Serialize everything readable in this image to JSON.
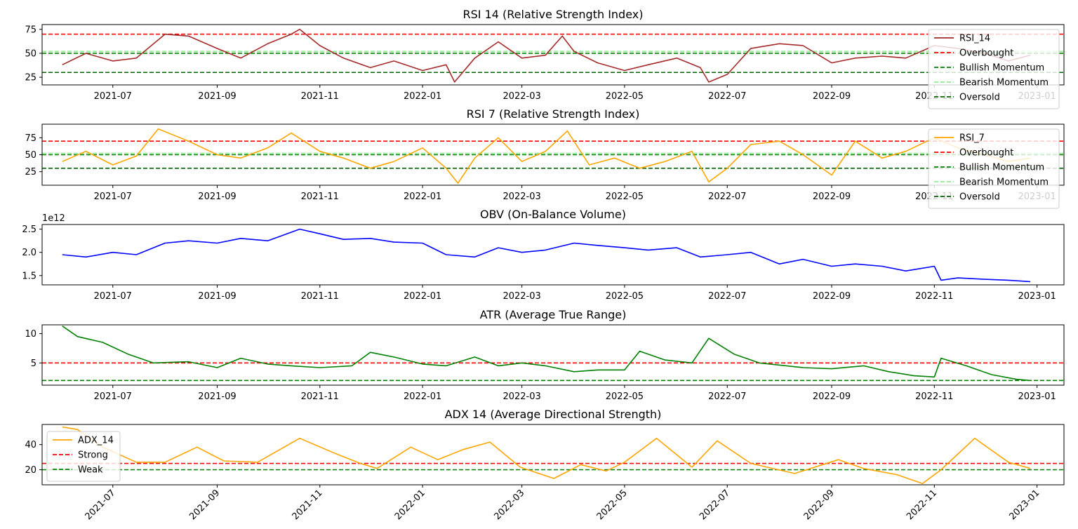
{
  "chart_data": [
    {
      "type": "line",
      "title": "RSI 14 (Relative Strength Index)",
      "xlim": [
        "2021-05-20",
        "2023-01-17"
      ],
      "ylim": [
        17,
        80
      ],
      "yticks": [
        "25",
        "50",
        "75"
      ],
      "xticks": [
        "2021-07",
        "2021-09",
        "2021-11",
        "2022-01",
        "2022-03",
        "2022-05",
        "2022-07",
        "2022-09",
        "2022-11",
        "2023-01"
      ],
      "legend": "upper-right",
      "series": [
        {
          "name": "RSI_14",
          "color": "#a52a2a",
          "dates": [
            "2021-06-01",
            "2021-06-15",
            "2021-07-01",
            "2021-07-15",
            "2021-08-01",
            "2021-08-15",
            "2021-09-01",
            "2021-09-15",
            "2021-10-01",
            "2021-10-15",
            "2021-10-20",
            "2021-11-01",
            "2021-11-15",
            "2021-12-01",
            "2021-12-15",
            "2022-01-01",
            "2022-01-15",
            "2022-01-20",
            "2022-02-01",
            "2022-02-15",
            "2022-03-01",
            "2022-03-15",
            "2022-03-25",
            "2022-04-01",
            "2022-04-15",
            "2022-05-01",
            "2022-05-15",
            "2022-06-01",
            "2022-06-15",
            "2022-06-20",
            "2022-07-01",
            "2022-07-15",
            "2022-08-01",
            "2022-08-15",
            "2022-09-01",
            "2022-09-15",
            "2022-10-01",
            "2022-10-15",
            "2022-11-01",
            "2022-11-15",
            "2022-12-01",
            "2022-12-15",
            "2022-12-28"
          ],
          "values": [
            38,
            50,
            42,
            45,
            70,
            68,
            55,
            45,
            60,
            70,
            75,
            58,
            45,
            35,
            42,
            32,
            38,
            20,
            45,
            62,
            45,
            48,
            68,
            52,
            40,
            32,
            38,
            45,
            35,
            20,
            28,
            55,
            60,
            58,
            40,
            45,
            47,
            45,
            58,
            55,
            50,
            42,
            48
          ]
        }
      ],
      "hlines": [
        {
          "name": "Overbought",
          "value": 70,
          "color": "#ff0000"
        },
        {
          "name": "Bullish Momentum",
          "value": 50,
          "color": "#008000"
        },
        {
          "name": "Bearish Momentum",
          "value": 52,
          "color": "#90ee90"
        },
        {
          "name": "Oversold",
          "value": 30,
          "color": "#006400"
        }
      ]
    },
    {
      "type": "line",
      "title": "RSI 7 (Relative Strength Index)",
      "xlim": [
        "2021-05-20",
        "2023-01-17"
      ],
      "ylim": [
        5,
        95
      ],
      "yticks": [
        "25",
        "50",
        "75"
      ],
      "xticks": [
        "2021-07",
        "2021-09",
        "2021-11",
        "2022-01",
        "2022-03",
        "2022-05",
        "2022-07",
        "2022-09",
        "2022-11",
        "2023-01"
      ],
      "legend": "upper-right",
      "series": [
        {
          "name": "RSI_7",
          "color": "#ffa500",
          "dates": [
            "2021-06-01",
            "2021-06-15",
            "2021-07-01",
            "2021-07-15",
            "2021-07-28",
            "2021-08-15",
            "2021-09-01",
            "2021-09-15",
            "2021-10-01",
            "2021-10-15",
            "2021-11-01",
            "2021-11-15",
            "2021-12-01",
            "2021-12-15",
            "2022-01-01",
            "2022-01-15",
            "2022-01-22",
            "2022-02-01",
            "2022-02-15",
            "2022-03-01",
            "2022-03-15",
            "2022-03-28",
            "2022-04-10",
            "2022-04-25",
            "2022-05-10",
            "2022-05-25",
            "2022-06-10",
            "2022-06-20",
            "2022-07-01",
            "2022-07-15",
            "2022-08-01",
            "2022-08-15",
            "2022-09-01",
            "2022-09-15",
            "2022-10-01",
            "2022-10-15",
            "2022-11-01",
            "2022-11-15",
            "2022-12-01",
            "2022-12-15",
            "2022-12-28"
          ],
          "values": [
            40,
            55,
            35,
            48,
            88,
            70,
            50,
            45,
            60,
            82,
            55,
            45,
            30,
            40,
            60,
            30,
            8,
            45,
            75,
            40,
            55,
            85,
            35,
            45,
            30,
            40,
            55,
            10,
            30,
            65,
            70,
            50,
            20,
            70,
            45,
            55,
            75,
            60,
            50,
            40,
            45
          ]
        }
      ],
      "hlines": [
        {
          "name": "Overbought",
          "value": 70,
          "color": "#ff0000"
        },
        {
          "name": "Bullish Momentum",
          "value": 50,
          "color": "#008000"
        },
        {
          "name": "Bearish Momentum",
          "value": 52,
          "color": "#90ee90"
        },
        {
          "name": "Oversold",
          "value": 30,
          "color": "#006400"
        }
      ]
    },
    {
      "type": "line",
      "title": "OBV (On-Balance Volume)",
      "offset_label": "1e12",
      "xlim": [
        "2021-05-20",
        "2023-01-17"
      ],
      "ylim": [
        1.3,
        2.6
      ],
      "yticks": [
        "1.5",
        "2.0",
        "2.5"
      ],
      "xticks": [
        "2021-07",
        "2021-09",
        "2021-11",
        "2022-01",
        "2022-03",
        "2022-05",
        "2022-07",
        "2022-09",
        "2022-11",
        "2023-01"
      ],
      "series": [
        {
          "name": "OBV",
          "color": "#0000ff",
          "dates": [
            "2021-06-01",
            "2021-06-15",
            "2021-07-01",
            "2021-07-15",
            "2021-08-01",
            "2021-08-15",
            "2021-09-01",
            "2021-09-15",
            "2021-10-01",
            "2021-10-20",
            "2021-11-01",
            "2021-11-15",
            "2021-12-01",
            "2021-12-15",
            "2022-01-01",
            "2022-01-15",
            "2022-02-01",
            "2022-02-15",
            "2022-03-01",
            "2022-03-15",
            "2022-04-01",
            "2022-04-15",
            "2022-05-01",
            "2022-05-15",
            "2022-06-01",
            "2022-06-15",
            "2022-07-01",
            "2022-07-15",
            "2022-08-01",
            "2022-08-15",
            "2022-09-01",
            "2022-09-15",
            "2022-10-01",
            "2022-10-15",
            "2022-11-01",
            "2022-11-05",
            "2022-11-15",
            "2022-12-01",
            "2022-12-15",
            "2022-12-28"
          ],
          "values": [
            1.95,
            1.9,
            2.0,
            1.95,
            2.2,
            2.25,
            2.2,
            2.3,
            2.25,
            2.5,
            2.4,
            2.28,
            2.3,
            2.22,
            2.2,
            1.95,
            1.9,
            2.1,
            2.0,
            2.05,
            2.2,
            2.15,
            2.1,
            2.05,
            2.1,
            1.9,
            1.95,
            2.0,
            1.75,
            1.85,
            1.7,
            1.75,
            1.7,
            1.6,
            1.7,
            1.4,
            1.45,
            1.42,
            1.4,
            1.37
          ]
        }
      ]
    },
    {
      "type": "line",
      "title": "ATR (Average True Range)",
      "xlim": [
        "2021-05-20",
        "2023-01-17"
      ],
      "ylim": [
        1.2,
        11.5
      ],
      "yticks": [
        "5",
        "10"
      ],
      "xticks": [
        "2021-07",
        "2021-09",
        "2021-11",
        "2022-01",
        "2022-03",
        "2022-05",
        "2022-07",
        "2022-09",
        "2022-11",
        "2023-01"
      ],
      "series": [
        {
          "name": "ATR",
          "color": "#008000",
          "dates": [
            "2021-06-01",
            "2021-06-10",
            "2021-06-25",
            "2021-07-10",
            "2021-07-25",
            "2021-08-15",
            "2021-09-01",
            "2021-09-15",
            "2021-10-01",
            "2021-10-15",
            "2021-11-01",
            "2021-11-20",
            "2021-12-01",
            "2021-12-15",
            "2022-01-01",
            "2022-01-15",
            "2022-02-01",
            "2022-02-15",
            "2022-03-01",
            "2022-03-15",
            "2022-04-01",
            "2022-04-15",
            "2022-05-01",
            "2022-05-10",
            "2022-05-25",
            "2022-06-10",
            "2022-06-20",
            "2022-07-05",
            "2022-07-20",
            "2022-08-15",
            "2022-09-01",
            "2022-09-20",
            "2022-10-05",
            "2022-10-20",
            "2022-11-01",
            "2022-11-05",
            "2022-11-20",
            "2022-12-05",
            "2022-12-20",
            "2022-12-28"
          ],
          "values": [
            11.3,
            9.5,
            8.5,
            6.5,
            5.0,
            5.2,
            4.2,
            5.8,
            4.8,
            4.5,
            4.2,
            4.5,
            6.8,
            6.0,
            4.8,
            4.5,
            6.0,
            4.5,
            5.0,
            4.5,
            3.5,
            3.8,
            3.8,
            7.0,
            5.5,
            5.0,
            9.2,
            6.5,
            5.0,
            4.2,
            4.0,
            4.5,
            3.5,
            2.8,
            2.6,
            5.8,
            4.5,
            3.0,
            2.2,
            2.0
          ]
        }
      ],
      "hlines": [
        {
          "value": 5,
          "color": "#ff0000"
        },
        {
          "value": 2,
          "color": "#008000"
        }
      ]
    },
    {
      "type": "line",
      "title": "ADX 14 (Average Directional Strength)",
      "xlim": [
        "2021-05-20",
        "2023-01-17"
      ],
      "ylim": [
        8,
        56
      ],
      "yticks": [
        "20",
        "40"
      ],
      "xticks": [
        "2021-07",
        "2021-09",
        "2021-11",
        "2022-01",
        "2022-03",
        "2022-05",
        "2022-07",
        "2022-09",
        "2022-11",
        "2023-01"
      ],
      "legend": "upper-left",
      "series": [
        {
          "name": "ADX_14",
          "color": "#ffa500",
          "dates": [
            "2021-06-01",
            "2021-06-10",
            "2021-06-25",
            "2021-07-15",
            "2021-08-01",
            "2021-08-20",
            "2021-09-05",
            "2021-09-25",
            "2021-10-20",
            "2021-11-10",
            "2021-11-25",
            "2021-12-05",
            "2021-12-25",
            "2022-01-10",
            "2022-01-25",
            "2022-02-10",
            "2022-02-28",
            "2022-03-20",
            "2022-04-05",
            "2022-04-20",
            "2022-05-01",
            "2022-05-20",
            "2022-06-10",
            "2022-06-25",
            "2022-07-15",
            "2022-08-10",
            "2022-09-05",
            "2022-09-20",
            "2022-10-10",
            "2022-10-25",
            "2022-11-05",
            "2022-11-25",
            "2022-12-15",
            "2022-12-28"
          ],
          "values": [
            54,
            52,
            38,
            26,
            26,
            38,
            27,
            26,
            45,
            33,
            25,
            21,
            38,
            28,
            36,
            42,
            22,
            13,
            24,
            19,
            26,
            45,
            22,
            43,
            25,
            17,
            28,
            21,
            16,
            9,
            20,
            45,
            26,
            21
          ]
        }
      ],
      "hlines": [
        {
          "name": "Strong",
          "value": 25,
          "color": "#ff0000"
        },
        {
          "name": "Weak",
          "value": 20,
          "color": "#008000"
        }
      ]
    }
  ]
}
